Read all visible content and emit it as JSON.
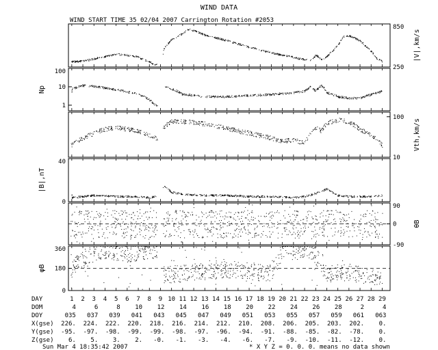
{
  "title": "WIND DATA",
  "header": "WIND START TIME  35 02/04 2007 Carrington Rotation #2053",
  "footer_left": "Sun Mar  4 18:35:42 2007",
  "footer_right": "* X Y Z = 0. 0. 0. means no data shown",
  "table": {
    "row_labels": [
      "DAY",
      "DOM",
      "DOY",
      "X(gse)",
      "Y(gse)",
      "Z(gse)"
    ],
    "day": [
      "1",
      "2",
      "3",
      "4",
      "5",
      "6",
      "7",
      "8",
      "9",
      "10",
      "11",
      "12",
      "13",
      "14",
      "15",
      "16",
      "17",
      "18",
      "19",
      "20",
      "21",
      "22",
      "23",
      "24",
      "25",
      "26",
      "27",
      "28",
      "29"
    ],
    "dom": [
      "4",
      "6",
      "8",
      "10",
      "12",
      "14",
      "16",
      "18",
      "20",
      "22",
      "24",
      "26",
      "28",
      "2",
      "4"
    ],
    "doy": [
      "035",
      "037",
      "039",
      "041",
      "043",
      "045",
      "047",
      "049",
      "051",
      "053",
      "055",
      "057",
      "059",
      "061",
      "063"
    ],
    "xgse": [
      "226.",
      "224.",
      "222.",
      "220.",
      "218.",
      "216.",
      "214.",
      "212.",
      "210.",
      "208.",
      "206.",
      "205.",
      "203.",
      "202.",
      "0."
    ],
    "ygse": [
      "-95.",
      "-97.",
      "-98.",
      "-99.",
      "-99.",
      "-98.",
      "-97.",
      "-96.",
      "-94.",
      "-91.",
      "-88.",
      "-85.",
      "-82.",
      "-78.",
      "0."
    ],
    "zgse": [
      "6.",
      "5.",
      "3.",
      "2.",
      "-0.",
      "-1.",
      "-3.",
      "-4.",
      "-6.",
      "-7.",
      "-9.",
      "-10.",
      "-11.",
      "-12.",
      "0."
    ]
  },
  "chart_data": [
    {
      "type": "scatter",
      "ylabel": "|V|,km/s",
      "y_ticks": [
        "850",
        "250"
      ],
      "ylim": [
        250,
        850
      ],
      "profile": [
        [
          1,
          330
        ],
        [
          2,
          335
        ],
        [
          4,
          400
        ],
        [
          5,
          430
        ],
        [
          6,
          420
        ],
        [
          7,
          390
        ],
        [
          8,
          320
        ],
        [
          8.5,
          290
        ],
        [
          9,
          275
        ],
        [
          9.3,
          510
        ],
        [
          10,
          640
        ],
        [
          11,
          720
        ],
        [
          11.5,
          780
        ],
        [
          12,
          760
        ],
        [
          13,
          700
        ],
        [
          15,
          620
        ],
        [
          17,
          530
        ],
        [
          19,
          450
        ],
        [
          21,
          390
        ],
        [
          21.5,
          370
        ],
        [
          22,
          360
        ],
        [
          22.5,
          340
        ],
        [
          23,
          420
        ],
        [
          23.5,
          360
        ],
        [
          24,
          400
        ],
        [
          25,
          560
        ],
        [
          25.5,
          680
        ],
        [
          26,
          690
        ],
        [
          27,
          620
        ],
        [
          28,
          470
        ],
        [
          28.5,
          370
        ],
        [
          29,
          330
        ]
      ]
    },
    {
      "type": "scatter",
      "ylabel": "Np",
      "log": true,
      "y_ticks": [
        "100",
        "10",
        "1"
      ],
      "ylim": [
        0.5,
        100
      ],
      "profile": [
        [
          1,
          8
        ],
        [
          2,
          12
        ],
        [
          3,
          11
        ],
        [
          5,
          7
        ],
        [
          7,
          4
        ],
        [
          8,
          2
        ],
        [
          8.5,
          1
        ],
        [
          9,
          1.2
        ],
        [
          9.3,
          10
        ],
        [
          10,
          8
        ],
        [
          11,
          4
        ],
        [
          13,
          3
        ],
        [
          15,
          3
        ],
        [
          17,
          3.5
        ],
        [
          19,
          4
        ],
        [
          21,
          5
        ],
        [
          22,
          6
        ],
        [
          22.5,
          10
        ],
        [
          23,
          6
        ],
        [
          23.5,
          12
        ],
        [
          24,
          5
        ],
        [
          25,
          3
        ],
        [
          26,
          2.5
        ],
        [
          27,
          2.5
        ],
        [
          28,
          4
        ],
        [
          29,
          6
        ]
      ]
    },
    {
      "type": "scatter",
      "ylabel": "Vth,km/s",
      "log": true,
      "y_ticks": [
        "100",
        "10"
      ],
      "ylim": [
        10,
        130
      ],
      "profile": [
        [
          1,
          22
        ],
        [
          2,
          30
        ],
        [
          4,
          50
        ],
        [
          5,
          55
        ],
        [
          6,
          50
        ],
        [
          7,
          45
        ],
        [
          8,
          35
        ],
        [
          8.5,
          30
        ],
        [
          9,
          28
        ],
        [
          9.3,
          55
        ],
        [
          10,
          80
        ],
        [
          12,
          75
        ],
        [
          14,
          60
        ],
        [
          16,
          45
        ],
        [
          18,
          35
        ],
        [
          19,
          30
        ],
        [
          20,
          25
        ],
        [
          21,
          28
        ],
        [
          21.5,
          25
        ],
        [
          22,
          22
        ],
        [
          22.5,
          40
        ],
        [
          23,
          55
        ],
        [
          23.5,
          45
        ],
        [
          24,
          70
        ],
        [
          25,
          85
        ],
        [
          26,
          75
        ],
        [
          27,
          50
        ],
        [
          28,
          35
        ],
        [
          29,
          20
        ]
      ]
    },
    {
      "type": "scatter",
      "ylabel": "|B|,nT",
      "y_ticks": [
        "40",
        "0"
      ],
      "ylim": [
        0,
        40
      ],
      "profile": [
        [
          1,
          4
        ],
        [
          2,
          5
        ],
        [
          3,
          6
        ],
        [
          5,
          5
        ],
        [
          7,
          5
        ],
        [
          8,
          4
        ],
        [
          8.5,
          5
        ],
        [
          9,
          7
        ],
        [
          9.3,
          15
        ],
        [
          10,
          9
        ],
        [
          11,
          7
        ],
        [
          13,
          6
        ],
        [
          15,
          6
        ],
        [
          17,
          5
        ],
        [
          19,
          5
        ],
        [
          21,
          4
        ],
        [
          22,
          5
        ],
        [
          23,
          8
        ],
        [
          24,
          12
        ],
        [
          25,
          6
        ],
        [
          26,
          5
        ],
        [
          27,
          5
        ],
        [
          28,
          5
        ],
        [
          29,
          6
        ]
      ]
    },
    {
      "type": "scatter",
      "ylabel": "θB",
      "y_ticks": [
        "90",
        "0",
        "-90"
      ],
      "ylim": [
        -90,
        90
      ],
      "spread": 60
    },
    {
      "type": "scatter",
      "ylabel": "φB",
      "y_ticks": [
        "360",
        "180",
        "0"
      ],
      "ylim": [
        0,
        360
      ],
      "profile": [
        [
          1,
          200
        ],
        [
          2,
          250
        ],
        [
          4,
          330
        ],
        [
          6,
          300
        ],
        [
          8,
          330
        ],
        [
          8.6,
          300
        ],
        [
          9,
          280
        ],
        [
          9.3,
          130
        ],
        [
          12,
          150
        ],
        [
          14,
          160
        ],
        [
          16,
          170
        ],
        [
          18,
          150
        ],
        [
          19,
          140
        ],
        [
          20,
          330
        ],
        [
          21,
          320
        ],
        [
          22,
          330
        ],
        [
          23,
          280
        ],
        [
          24,
          140
        ],
        [
          26,
          150
        ],
        [
          28,
          120
        ],
        [
          29,
          90
        ]
      ]
    }
  ]
}
